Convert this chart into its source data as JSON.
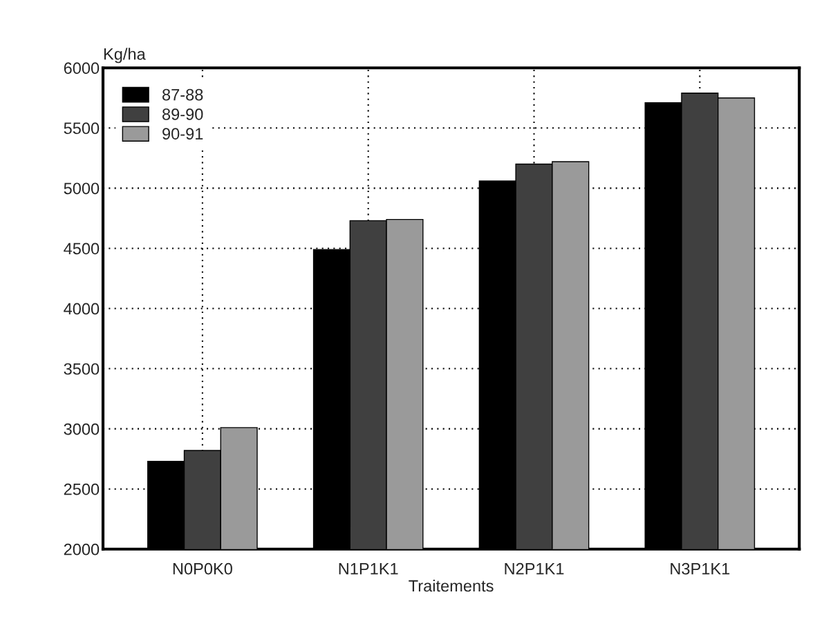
{
  "chart_data": {
    "type": "bar",
    "ylabel": "Kg/ha",
    "xlabel": "Traitements",
    "categories": [
      "N0P0K0",
      "N1P1K1",
      "N2P1K1",
      "N3P1K1"
    ],
    "series": [
      {
        "name": "87-88",
        "color": "#000000",
        "values": [
          2730,
          4490,
          5060,
          5710
        ]
      },
      {
        "name": "89-90",
        "color": "#404040",
        "values": [
          2820,
          4730,
          5200,
          5790
        ]
      },
      {
        "name": "90-91",
        "color": "#9a9a9a",
        "values": [
          3010,
          4740,
          5220,
          5750
        ]
      }
    ],
    "ylim": [
      2000,
      6000
    ],
    "yticks": [
      2000,
      2500,
      3000,
      3500,
      4000,
      4500,
      5000,
      5500,
      6000
    ],
    "grid": true,
    "legend": "top left"
  }
}
